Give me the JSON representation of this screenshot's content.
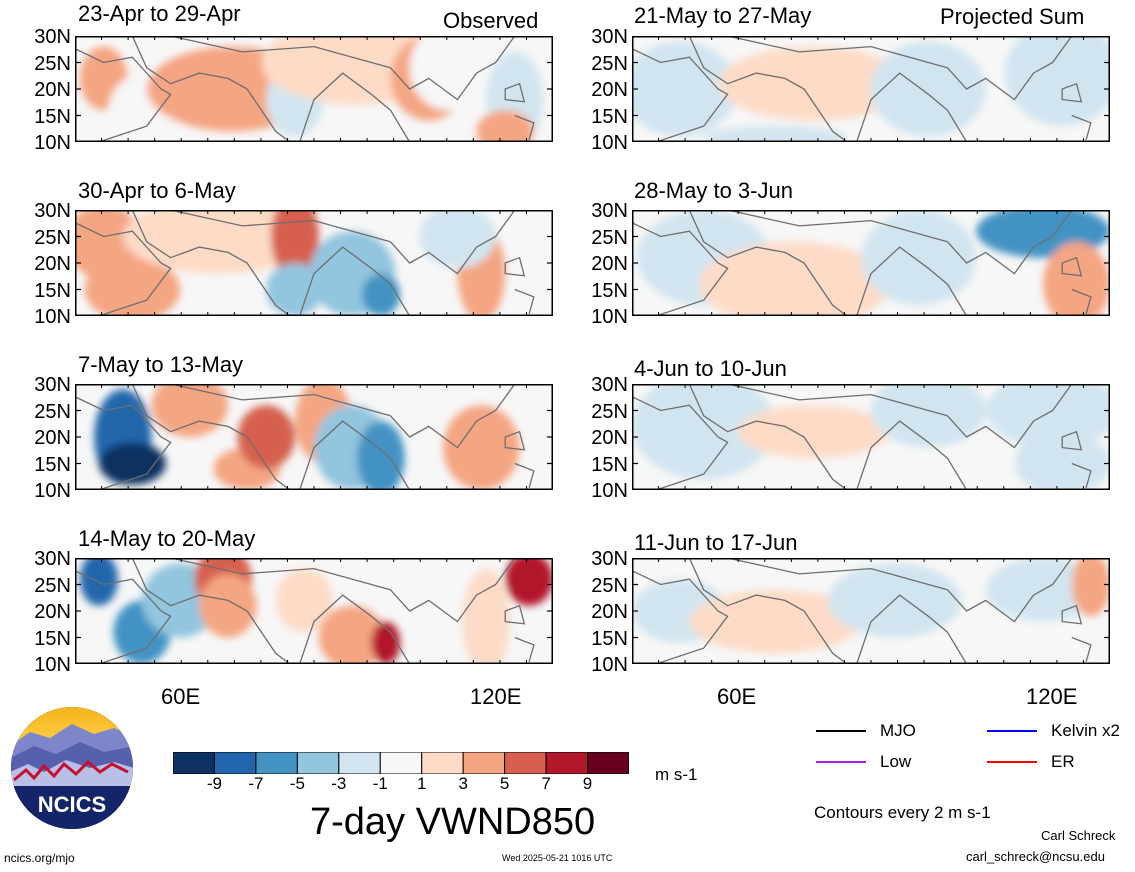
{
  "chart_data": {
    "type": "heatmap",
    "title": "7-day VWND850",
    "units": "m s-1",
    "columns": [
      {
        "label": "Observed",
        "panels": [
          "23-Apr to 29-Apr",
          "30-Apr to 6-May",
          "7-May to 13-May",
          "14-May to 20-May"
        ]
      },
      {
        "label": "Projected Sum",
        "panels": [
          "21-May to 27-May",
          "28-May to 3-Jun",
          "4-Jun to 10-Jun",
          "11-Jun to 17-Jun"
        ]
      }
    ],
    "lat_ticks": [
      "30N",
      "25N",
      "20N",
      "15N",
      "10N"
    ],
    "lon_ticks": [
      "60E",
      "120E"
    ],
    "lat_range": [
      10,
      30
    ],
    "lon_range": [
      40,
      130
    ],
    "colorbar": {
      "ticks": [
        "-9",
        "-7",
        "-5",
        "-3",
        "-1",
        "1",
        "3",
        "5",
        "7",
        "9"
      ],
      "colors": [
        "#0d3161",
        "#2166ac",
        "#4393c3",
        "#92c5de",
        "#d1e5f0",
        "#f7f7f7",
        "#fddbc7",
        "#f4a582",
        "#d6604d",
        "#b2182b",
        "#67001f"
      ]
    },
    "legend": [
      {
        "label": "MJO",
        "color": "#000000"
      },
      {
        "label": "Kelvin x2",
        "color": "#0000ff"
      },
      {
        "label": "Low",
        "color": "#a020f0"
      },
      {
        "label": "ER",
        "color": "#ff0000"
      }
    ],
    "contour_note": "Contours every 2 m s-1"
  },
  "footer": {
    "site": "ncics.org/mjo",
    "timestamp": "Wed 2025-05-21 1016 UTC",
    "author": "Carl Schreck",
    "email": "carl_schreck@ncsu.edu"
  },
  "logo": {
    "text": "NCICS"
  }
}
